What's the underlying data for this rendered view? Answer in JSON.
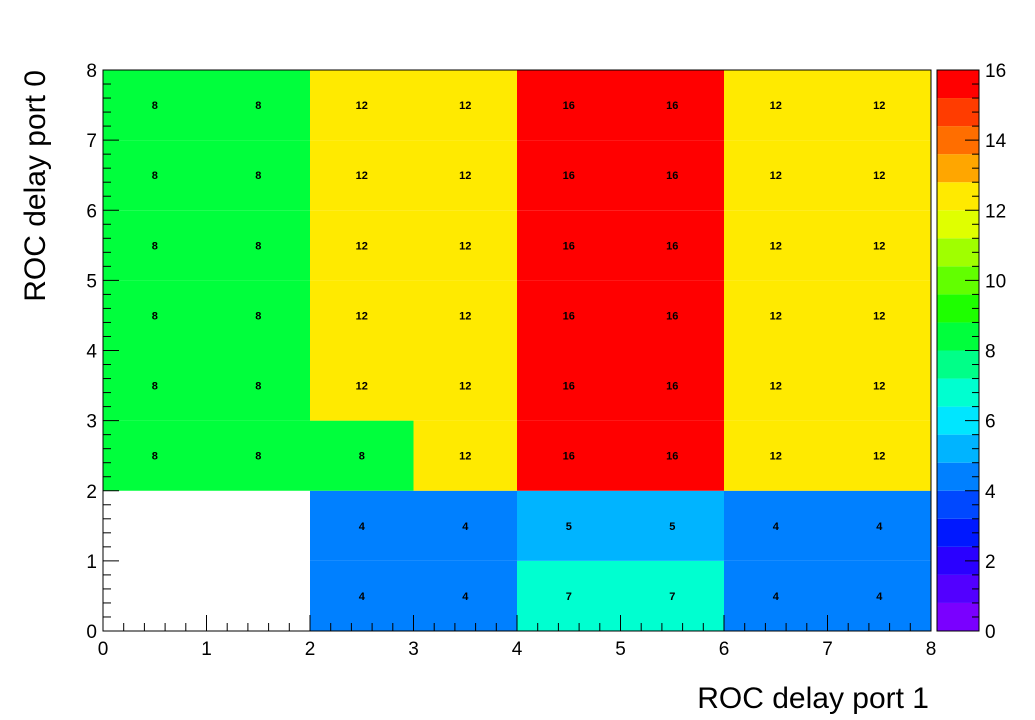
{
  "chart_data": {
    "type": "heatmap",
    "xlabel": "ROC delay port 1",
    "ylabel": "ROC delay port 0",
    "xlim": [
      0,
      8
    ],
    "ylim": [
      0,
      8
    ],
    "zlim": [
      0,
      16
    ],
    "x_ticks": [
      "0",
      "1",
      "2",
      "3",
      "4",
      "5",
      "6",
      "7",
      "8"
    ],
    "y_ticks": [
      "0",
      "1",
      "2",
      "3",
      "4",
      "5",
      "6",
      "7",
      "8"
    ],
    "z_ticks": [
      "0",
      "2",
      "4",
      "6",
      "8",
      "10",
      "12",
      "14",
      "16"
    ],
    "palette": [
      "#7a00ff",
      "#5200ff",
      "#2a00ff",
      "#0018ff",
      "#0048ff",
      "#0080ff",
      "#00b4ff",
      "#00e6ff",
      "#00ffd0",
      "#00ff88",
      "#00ff3c",
      "#1eff00",
      "#62ff00",
      "#a0ff00",
      "#e0ff00",
      "#ffea00",
      "#ffa600",
      "#ff6e00",
      "#ff3c00",
      "#ff0000"
    ],
    "cells": [
      [
        null,
        null,
        4,
        4,
        7,
        7,
        4,
        4
      ],
      [
        null,
        null,
        4,
        4,
        5,
        5,
        4,
        4
      ],
      [
        8,
        8,
        8,
        12,
        16,
        16,
        12,
        12
      ],
      [
        8,
        8,
        12,
        12,
        16,
        16,
        12,
        12
      ],
      [
        8,
        8,
        12,
        12,
        16,
        16,
        12,
        12
      ],
      [
        8,
        8,
        12,
        12,
        16,
        16,
        12,
        12
      ],
      [
        8,
        8,
        12,
        12,
        16,
        16,
        12,
        12
      ],
      [
        8,
        8,
        12,
        12,
        16,
        16,
        12,
        12
      ]
    ]
  }
}
